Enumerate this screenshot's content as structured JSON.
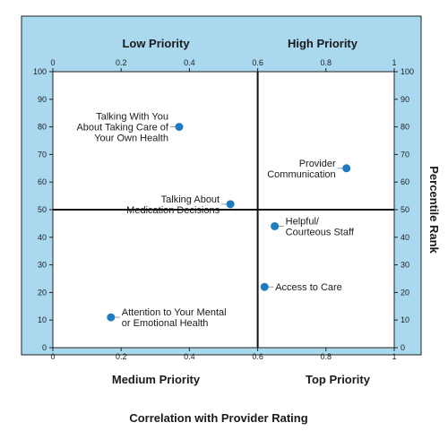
{
  "colors": {
    "panel_bg": "#a9d8ef",
    "plot_bg": "#ffffff",
    "border": "#222222",
    "point": "#1f7bbd",
    "leader": "#999999",
    "quadrant_line": "#111111"
  },
  "quadrants": {
    "top_left": "Low Priority",
    "top_right": "High Priority",
    "bottom_left": "Medium Priority",
    "bottom_right": "Top Priority"
  },
  "chart_data": {
    "type": "scatter",
    "xlabel": "Correlation with Provider Rating",
    "ylabel": "Percentile Rank",
    "xlim": [
      0,
      1
    ],
    "ylim": [
      0,
      100
    ],
    "x_ticks": [
      "0",
      "0.2",
      "0.4",
      "0.6",
      "0.8",
      "1"
    ],
    "x_tick_values": [
      0,
      0.2,
      0.4,
      0.6,
      0.8,
      1
    ],
    "y_ticks": [
      "0",
      "10",
      "20",
      "30",
      "40",
      "50",
      "60",
      "70",
      "80",
      "90",
      "100"
    ],
    "y_tick_values": [
      0,
      10,
      20,
      30,
      40,
      50,
      60,
      70,
      80,
      90,
      100
    ],
    "divider_x": 0.6,
    "divider_y": 50,
    "grid": false,
    "points": [
      {
        "label_lines": [
          "Talking With You",
          "About Taking Care of",
          "Your Own Health"
        ],
        "x": 0.37,
        "y": 80,
        "label_side": "left"
      },
      {
        "label_lines": [
          "Provider",
          "Communication"
        ],
        "x": 0.86,
        "y": 65,
        "label_side": "left"
      },
      {
        "label_lines": [
          "Talking About",
          "Medication Decisions"
        ],
        "x": 0.52,
        "y": 52,
        "label_side": "left"
      },
      {
        "label_lines": [
          "Helpful/",
          "Courteous Staff"
        ],
        "x": 0.65,
        "y": 44,
        "label_side": "right"
      },
      {
        "label_lines": [
          "Access to Care"
        ],
        "x": 0.62,
        "y": 22,
        "label_side": "right"
      },
      {
        "label_lines": [
          "Attention to Your Mental",
          "or Emotional Health"
        ],
        "x": 0.17,
        "y": 11,
        "label_side": "right"
      }
    ]
  }
}
